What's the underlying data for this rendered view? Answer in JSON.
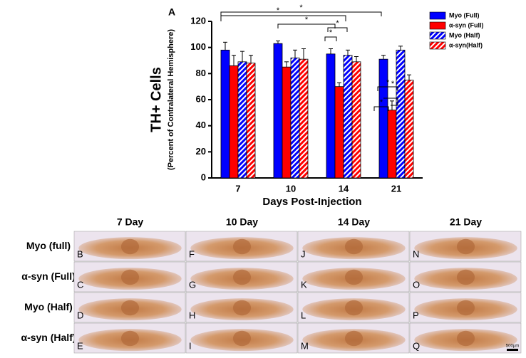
{
  "chart_data": {
    "type": "bar",
    "panel": "A",
    "y_label": "TH+ Cells",
    "y_sublabel": "(Percent of Contralateral Hemisphere)",
    "x_label": "Days Post-Injection",
    "categories": [
      "7",
      "10",
      "14",
      "21"
    ],
    "series": [
      {
        "name": "Myo (Full)",
        "color": "#0000ff",
        "hatch": false,
        "values": [
          98,
          103,
          95,
          91
        ],
        "errors": [
          6,
          2,
          4,
          3
        ]
      },
      {
        "name": "α-syn (Full)",
        "color": "#ff0000",
        "hatch": false,
        "values": [
          86,
          85,
          70,
          52
        ],
        "errors": [
          8,
          4,
          3,
          7
        ]
      },
      {
        "name": "Myo (Half)",
        "color": "#0000ff",
        "hatch": true,
        "values": [
          89,
          92,
          94,
          98
        ],
        "errors": [
          8,
          6,
          4,
          3
        ]
      },
      {
        "name": "α-syn(Half)",
        "color": "#ff0000",
        "hatch": true,
        "values": [
          88,
          91,
          89,
          75
        ],
        "errors": [
          6,
          8,
          4,
          4
        ]
      }
    ],
    "ylim": [
      0,
      120
    ],
    "yticks": [
      0,
      20,
      40,
      60,
      80,
      100,
      120
    ],
    "significance": [
      "*",
      "*",
      "*",
      "*",
      "*",
      "*",
      "*"
    ]
  },
  "figure": {
    "column_headers": [
      "7 Day",
      "10 Day",
      "14 Day",
      "21 Day"
    ],
    "row_labels": [
      "Myo (full)",
      "α-syn (Full)",
      "Myo (Half)",
      "α-syn (Half)"
    ],
    "panel_letters": [
      [
        "B",
        "F",
        "J",
        "N"
      ],
      [
        "C",
        "G",
        "K",
        "O"
      ],
      [
        "D",
        "H",
        "L",
        "P"
      ],
      [
        "E",
        "I",
        "M",
        "Q"
      ]
    ],
    "scale_bar": "500µm"
  }
}
